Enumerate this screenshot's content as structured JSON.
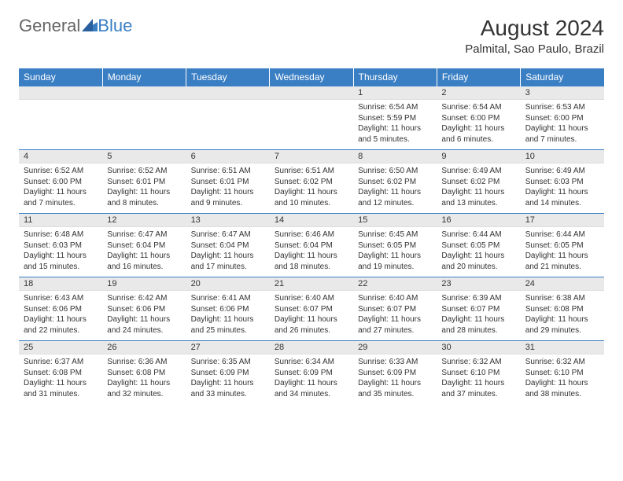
{
  "logo": {
    "part1": "General",
    "part2": "Blue"
  },
  "title": "August 2024",
  "location": "Palmital, Sao Paulo, Brazil",
  "colors": {
    "header_bg": "#3a7fc4",
    "daynum_bg": "#e9e9e9",
    "row_border": "#3a7fc4",
    "text": "#333333",
    "logo_gray": "#666666",
    "logo_blue": "#3a7fc4"
  },
  "day_headers": [
    "Sunday",
    "Monday",
    "Tuesday",
    "Wednesday",
    "Thursday",
    "Friday",
    "Saturday"
  ],
  "weeks": [
    [
      {
        "n": "",
        "sr": "",
        "ss": "",
        "dl": ""
      },
      {
        "n": "",
        "sr": "",
        "ss": "",
        "dl": ""
      },
      {
        "n": "",
        "sr": "",
        "ss": "",
        "dl": ""
      },
      {
        "n": "",
        "sr": "",
        "ss": "",
        "dl": ""
      },
      {
        "n": "1",
        "sr": "Sunrise: 6:54 AM",
        "ss": "Sunset: 5:59 PM",
        "dl": "Daylight: 11 hours and 5 minutes."
      },
      {
        "n": "2",
        "sr": "Sunrise: 6:54 AM",
        "ss": "Sunset: 6:00 PM",
        "dl": "Daylight: 11 hours and 6 minutes."
      },
      {
        "n": "3",
        "sr": "Sunrise: 6:53 AM",
        "ss": "Sunset: 6:00 PM",
        "dl": "Daylight: 11 hours and 7 minutes."
      }
    ],
    [
      {
        "n": "4",
        "sr": "Sunrise: 6:52 AM",
        "ss": "Sunset: 6:00 PM",
        "dl": "Daylight: 11 hours and 7 minutes."
      },
      {
        "n": "5",
        "sr": "Sunrise: 6:52 AM",
        "ss": "Sunset: 6:01 PM",
        "dl": "Daylight: 11 hours and 8 minutes."
      },
      {
        "n": "6",
        "sr": "Sunrise: 6:51 AM",
        "ss": "Sunset: 6:01 PM",
        "dl": "Daylight: 11 hours and 9 minutes."
      },
      {
        "n": "7",
        "sr": "Sunrise: 6:51 AM",
        "ss": "Sunset: 6:02 PM",
        "dl": "Daylight: 11 hours and 10 minutes."
      },
      {
        "n": "8",
        "sr": "Sunrise: 6:50 AM",
        "ss": "Sunset: 6:02 PM",
        "dl": "Daylight: 11 hours and 12 minutes."
      },
      {
        "n": "9",
        "sr": "Sunrise: 6:49 AM",
        "ss": "Sunset: 6:02 PM",
        "dl": "Daylight: 11 hours and 13 minutes."
      },
      {
        "n": "10",
        "sr": "Sunrise: 6:49 AM",
        "ss": "Sunset: 6:03 PM",
        "dl": "Daylight: 11 hours and 14 minutes."
      }
    ],
    [
      {
        "n": "11",
        "sr": "Sunrise: 6:48 AM",
        "ss": "Sunset: 6:03 PM",
        "dl": "Daylight: 11 hours and 15 minutes."
      },
      {
        "n": "12",
        "sr": "Sunrise: 6:47 AM",
        "ss": "Sunset: 6:04 PM",
        "dl": "Daylight: 11 hours and 16 minutes."
      },
      {
        "n": "13",
        "sr": "Sunrise: 6:47 AM",
        "ss": "Sunset: 6:04 PM",
        "dl": "Daylight: 11 hours and 17 minutes."
      },
      {
        "n": "14",
        "sr": "Sunrise: 6:46 AM",
        "ss": "Sunset: 6:04 PM",
        "dl": "Daylight: 11 hours and 18 minutes."
      },
      {
        "n": "15",
        "sr": "Sunrise: 6:45 AM",
        "ss": "Sunset: 6:05 PM",
        "dl": "Daylight: 11 hours and 19 minutes."
      },
      {
        "n": "16",
        "sr": "Sunrise: 6:44 AM",
        "ss": "Sunset: 6:05 PM",
        "dl": "Daylight: 11 hours and 20 minutes."
      },
      {
        "n": "17",
        "sr": "Sunrise: 6:44 AM",
        "ss": "Sunset: 6:05 PM",
        "dl": "Daylight: 11 hours and 21 minutes."
      }
    ],
    [
      {
        "n": "18",
        "sr": "Sunrise: 6:43 AM",
        "ss": "Sunset: 6:06 PM",
        "dl": "Daylight: 11 hours and 22 minutes."
      },
      {
        "n": "19",
        "sr": "Sunrise: 6:42 AM",
        "ss": "Sunset: 6:06 PM",
        "dl": "Daylight: 11 hours and 24 minutes."
      },
      {
        "n": "20",
        "sr": "Sunrise: 6:41 AM",
        "ss": "Sunset: 6:06 PM",
        "dl": "Daylight: 11 hours and 25 minutes."
      },
      {
        "n": "21",
        "sr": "Sunrise: 6:40 AM",
        "ss": "Sunset: 6:07 PM",
        "dl": "Daylight: 11 hours and 26 minutes."
      },
      {
        "n": "22",
        "sr": "Sunrise: 6:40 AM",
        "ss": "Sunset: 6:07 PM",
        "dl": "Daylight: 11 hours and 27 minutes."
      },
      {
        "n": "23",
        "sr": "Sunrise: 6:39 AM",
        "ss": "Sunset: 6:07 PM",
        "dl": "Daylight: 11 hours and 28 minutes."
      },
      {
        "n": "24",
        "sr": "Sunrise: 6:38 AM",
        "ss": "Sunset: 6:08 PM",
        "dl": "Daylight: 11 hours and 29 minutes."
      }
    ],
    [
      {
        "n": "25",
        "sr": "Sunrise: 6:37 AM",
        "ss": "Sunset: 6:08 PM",
        "dl": "Daylight: 11 hours and 31 minutes."
      },
      {
        "n": "26",
        "sr": "Sunrise: 6:36 AM",
        "ss": "Sunset: 6:08 PM",
        "dl": "Daylight: 11 hours and 32 minutes."
      },
      {
        "n": "27",
        "sr": "Sunrise: 6:35 AM",
        "ss": "Sunset: 6:09 PM",
        "dl": "Daylight: 11 hours and 33 minutes."
      },
      {
        "n": "28",
        "sr": "Sunrise: 6:34 AM",
        "ss": "Sunset: 6:09 PM",
        "dl": "Daylight: 11 hours and 34 minutes."
      },
      {
        "n": "29",
        "sr": "Sunrise: 6:33 AM",
        "ss": "Sunset: 6:09 PM",
        "dl": "Daylight: 11 hours and 35 minutes."
      },
      {
        "n": "30",
        "sr": "Sunrise: 6:32 AM",
        "ss": "Sunset: 6:10 PM",
        "dl": "Daylight: 11 hours and 37 minutes."
      },
      {
        "n": "31",
        "sr": "Sunrise: 6:32 AM",
        "ss": "Sunset: 6:10 PM",
        "dl": "Daylight: 11 hours and 38 minutes."
      }
    ]
  ]
}
